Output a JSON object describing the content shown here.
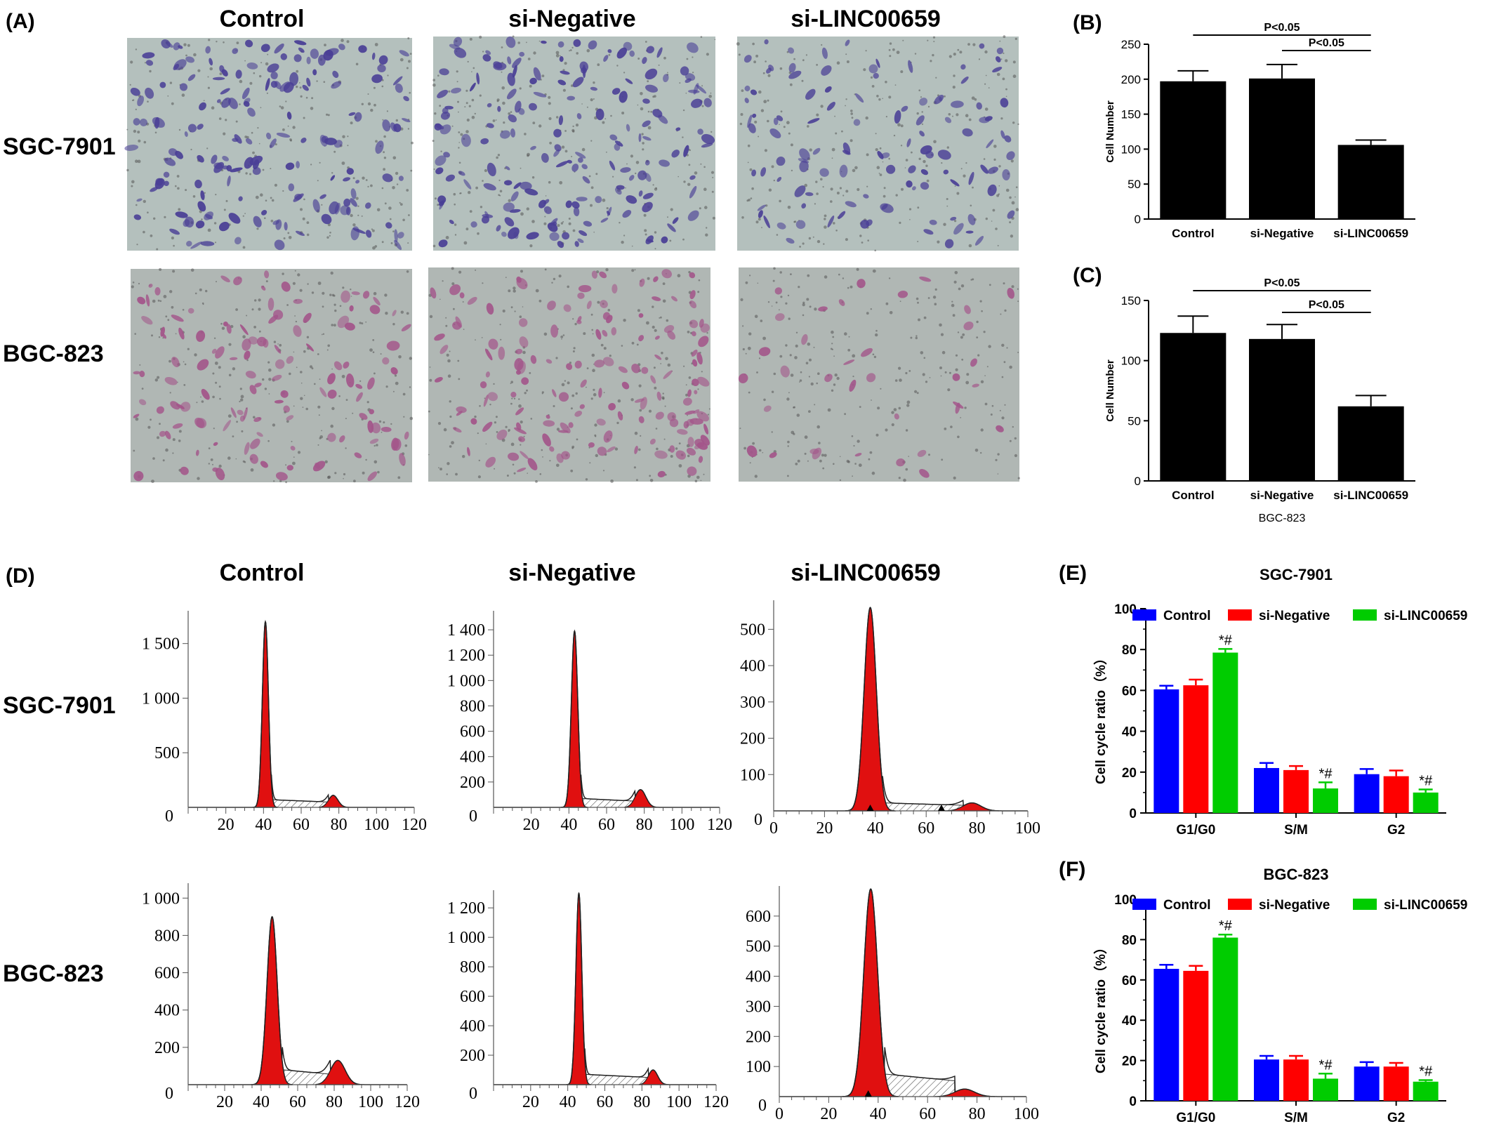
{
  "panels": {
    "A": {
      "label": "(A)"
    },
    "B": {
      "label": "(B)"
    },
    "C": {
      "label": "(C)"
    },
    "D": {
      "label": "(D)"
    },
    "E": {
      "label": "(E)"
    },
    "F": {
      "label": "(F)"
    }
  },
  "column_headers": [
    "Control",
    "si-Negative",
    "si-LINC00659"
  ],
  "row_labels": [
    "SGC-7901",
    "BGC-823"
  ],
  "micrographs": {
    "row_colors": [
      {
        "bg": "#b4c0bd",
        "cell": "#4a3f96"
      },
      {
        "bg": "#b0b7b4",
        "cell": "#a3558a"
      }
    ]
  },
  "chart_data": [
    {
      "id": "B",
      "type": "bar",
      "categories": [
        "Control",
        "si-Negative",
        "si-LINC00659"
      ],
      "values": [
        197,
        201,
        106
      ],
      "errors": [
        15,
        20,
        7
      ],
      "ylabel": "Cell Number",
      "ylim": [
        0,
        250
      ],
      "yticks": [
        0,
        50,
        100,
        150,
        200,
        250
      ],
      "significance": [
        {
          "from": 0,
          "to": 2,
          "label": "P<0.05"
        },
        {
          "from": 1,
          "to": 2,
          "label": "P<0.05"
        }
      ],
      "color": "#000000"
    },
    {
      "id": "C",
      "type": "bar",
      "categories": [
        "Control",
        "si-Negative",
        "si-LINC00659"
      ],
      "values": [
        123,
        118,
        62
      ],
      "errors": [
        14,
        12,
        9
      ],
      "ylabel": "Cell Number",
      "xlabel": "BGC-823",
      "ylim": [
        0,
        150
      ],
      "yticks": [
        0,
        50,
        100,
        150
      ],
      "significance": [
        {
          "from": 0,
          "to": 2,
          "label": "P<0.05"
        },
        {
          "from": 1,
          "to": 2,
          "label": "P<0.05"
        }
      ],
      "color": "#000000"
    },
    {
      "id": "D1",
      "type": "histogram",
      "xticks": [
        20,
        40,
        60,
        80,
        100,
        120
      ],
      "xlim": [
        0,
        120
      ],
      "yticks": [
        {
          "v": 500,
          "t": "500"
        },
        {
          "v": 1000,
          "t": "1 000"
        },
        {
          "v": 1500,
          "t": "1 500"
        }
      ],
      "ytick_zero": "0",
      "ylim": [
        0,
        1800
      ],
      "g1": {
        "pos": 41,
        "h": 1700,
        "w": 1.6
      },
      "g2": {
        "pos": 77,
        "h": 110,
        "w": 2.5
      },
      "s": {
        "h": 70
      }
    },
    {
      "id": "D2",
      "type": "histogram",
      "xticks": [
        20,
        40,
        60,
        80,
        100,
        120
      ],
      "xlim": [
        0,
        120
      ],
      "yticks": [
        {
          "v": 200,
          "t": "200"
        },
        {
          "v": 400,
          "t": "400"
        },
        {
          "v": 600,
          "t": "600"
        },
        {
          "v": 800,
          "t": "800"
        },
        {
          "v": 1000,
          "t": "1 000"
        },
        {
          "v": 1200,
          "t": "1 200"
        },
        {
          "v": 1400,
          "t": "1 400"
        }
      ],
      "ytick_zero": "0",
      "ylim": [
        0,
        1550
      ],
      "g1": {
        "pos": 43,
        "h": 1390,
        "w": 1.7
      },
      "g2": {
        "pos": 78,
        "h": 140,
        "w": 2.8
      },
      "s": {
        "h": 70
      }
    },
    {
      "id": "D3",
      "type": "histogram",
      "xticks": [
        0,
        20,
        40,
        60,
        80,
        100
      ],
      "xlim": [
        0,
        100
      ],
      "yticks": [
        {
          "v": 100,
          "t": "100"
        },
        {
          "v": 200,
          "t": "200"
        },
        {
          "v": 300,
          "t": "300"
        },
        {
          "v": 400,
          "t": "400"
        },
        {
          "v": 500,
          "t": "500"
        }
      ],
      "ytick_zero": "0",
      "ylim": [
        0,
        580
      ],
      "g1": {
        "pos": 38,
        "h": 560,
        "w": 2.4
      },
      "g2": {
        "pos": 78,
        "h": 22,
        "w": 3.5
      },
      "s": {
        "h": 22
      },
      "markers": [
        38,
        66
      ]
    },
    {
      "id": "D4",
      "type": "histogram",
      "xticks": [
        20,
        40,
        60,
        80,
        100,
        120
      ],
      "xlim": [
        0,
        120
      ],
      "yticks": [
        {
          "v": 200,
          "t": "200"
        },
        {
          "v": 400,
          "t": "400"
        },
        {
          "v": 600,
          "t": "600"
        },
        {
          "v": 800,
          "t": "800"
        },
        {
          "v": 1000,
          "t": "1 000"
        }
      ],
      "ytick_zero": "0",
      "ylim": [
        0,
        1080
      ],
      "g1": {
        "pos": 46,
        "h": 900,
        "w": 2.8
      },
      "g2": {
        "pos": 82,
        "h": 130,
        "w": 4
      },
      "s": {
        "h": 80
      }
    },
    {
      "id": "D5",
      "type": "histogram",
      "xticks": [
        20,
        40,
        60,
        80,
        100,
        120
      ],
      "xlim": [
        0,
        120
      ],
      "yticks": [
        {
          "v": 200,
          "t": "200"
        },
        {
          "v": 400,
          "t": "400"
        },
        {
          "v": 600,
          "t": "600"
        },
        {
          "v": 800,
          "t": "800"
        },
        {
          "v": 1000,
          "t": "1 000"
        },
        {
          "v": 1200,
          "t": "1 200"
        }
      ],
      "ytick_zero": "0",
      "ylim": [
        0,
        1320
      ],
      "g1": {
        "pos": 46,
        "h": 1300,
        "w": 1.6
      },
      "g2": {
        "pos": 86,
        "h": 100,
        "w": 2.5
      },
      "s": {
        "h": 70
      }
    },
    {
      "id": "D6",
      "type": "histogram",
      "xticks": [
        0,
        20,
        40,
        60,
        80,
        100
      ],
      "xlim": [
        0,
        100
      ],
      "yticks": [
        {
          "v": 100,
          "t": "100"
        },
        {
          "v": 200,
          "t": "200"
        },
        {
          "v": 300,
          "t": "300"
        },
        {
          "v": 400,
          "t": "400"
        },
        {
          "v": 500,
          "t": "500"
        },
        {
          "v": 600,
          "t": "600"
        }
      ],
      "ytick_zero": "0",
      "ylim": [
        0,
        700
      ],
      "g1": {
        "pos": 37,
        "h": 690,
        "w": 2.8
      },
      "g2": {
        "pos": 75,
        "h": 25,
        "w": 4
      },
      "s": {
        "h": 75
      },
      "markers": [
        36
      ]
    },
    {
      "id": "E",
      "type": "bar",
      "title": "SGC-7901",
      "categories": [
        "G1/G0",
        "S/M",
        "G2"
      ],
      "series": [
        {
          "name": "Control",
          "color": "#0000ff",
          "values": [
            60.5,
            22,
            19
          ],
          "errors": [
            1.8,
            2.5,
            2.5
          ]
        },
        {
          "name": "si-Negative",
          "color": "#ff0000",
          "values": [
            62.5,
            21,
            18
          ],
          "errors": [
            2.8,
            2,
            2.8
          ]
        },
        {
          "name": "si-LINC00659",
          "color": "#00cc00",
          "values": [
            78.5,
            12,
            10
          ],
          "errors": [
            1.8,
            3,
            1.5
          ]
        }
      ],
      "annotations": [
        {
          "cat": 0,
          "text": "*#"
        },
        {
          "cat": 1,
          "text": "*#"
        },
        {
          "cat": 2,
          "text": "*#"
        }
      ],
      "ylabel": "Cell cycle ratio（%）",
      "ylim": [
        0,
        100
      ],
      "yticks": [
        0,
        20,
        40,
        60,
        80,
        100
      ],
      "legend_position": "top"
    },
    {
      "id": "F",
      "type": "bar",
      "title": "BGC-823",
      "categories": [
        "G1/G0",
        "S/M",
        "G2"
      ],
      "series": [
        {
          "name": "Control",
          "color": "#0000ff",
          "values": [
            65.5,
            20.5,
            17
          ],
          "errors": [
            2,
            1.8,
            2.2
          ]
        },
        {
          "name": "si-Negative",
          "color": "#ff0000",
          "values": [
            64.5,
            20.5,
            17
          ],
          "errors": [
            2.5,
            1.8,
            1.8
          ]
        },
        {
          "name": "si-LINC00659",
          "color": "#00cc00",
          "values": [
            81,
            11,
            9.5
          ],
          "errors": [
            1.5,
            2.5,
            0.8
          ]
        }
      ],
      "annotations": [
        {
          "cat": 0,
          "text": "*#"
        },
        {
          "cat": 1,
          "text": "*#"
        },
        {
          "cat": 2,
          "text": "*#"
        }
      ],
      "ylabel": "Cell cycle ratio（%）",
      "ylim": [
        0,
        100
      ],
      "yticks": [
        0,
        20,
        40,
        60,
        80,
        100
      ],
      "legend_position": "top"
    }
  ]
}
